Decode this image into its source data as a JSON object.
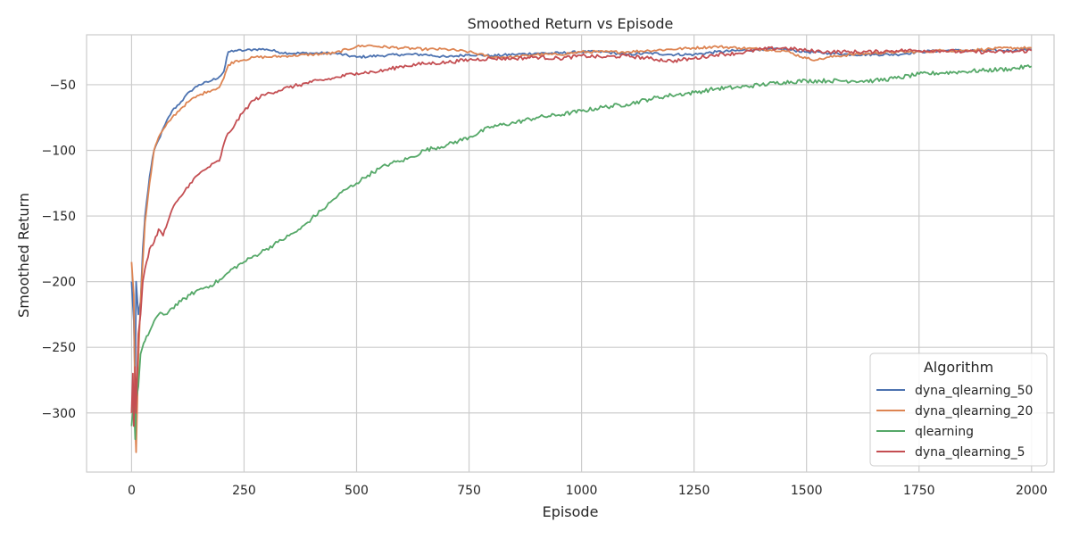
{
  "chart_data": {
    "type": "line",
    "title": "Smoothed Return vs Episode",
    "xlabel": "Episode",
    "ylabel": "Smoothed Return",
    "xlim": [
      -100,
      2050
    ],
    "ylim": [
      -345,
      -12
    ],
    "xticks": [
      0,
      250,
      500,
      750,
      1000,
      1250,
      1500,
      1750,
      2000
    ],
    "xtick_labels": [
      "0",
      "250",
      "500",
      "750",
      "1000",
      "1250",
      "1500",
      "1750",
      "2000"
    ],
    "yticks": [
      -50,
      -100,
      -150,
      -200,
      -250,
      -300
    ],
    "ytick_labels": [
      "−50",
      "−100",
      "−150",
      "−200",
      "−250",
      "−300"
    ],
    "grid": true,
    "legend": {
      "title": "Algorithm",
      "position": "lower-right"
    },
    "series": [
      {
        "name": "dyna_qlearning_50",
        "color": "#4c72b0",
        "noise": 1.0,
        "points": [
          [
            0,
            -200
          ],
          [
            5,
            -230
          ],
          [
            8,
            -280
          ],
          [
            10,
            -200
          ],
          [
            15,
            -225
          ],
          [
            20,
            -215
          ],
          [
            25,
            -175
          ],
          [
            30,
            -150
          ],
          [
            40,
            -120
          ],
          [
            50,
            -100
          ],
          [
            60,
            -92
          ],
          [
            75,
            -80
          ],
          [
            90,
            -70
          ],
          [
            110,
            -63
          ],
          [
            130,
            -55
          ],
          [
            150,
            -50
          ],
          [
            170,
            -48
          ],
          [
            195,
            -44
          ],
          [
            205,
            -40
          ],
          [
            215,
            -25
          ],
          [
            230,
            -24
          ],
          [
            250,
            -24
          ],
          [
            275,
            -23
          ],
          [
            300,
            -23
          ],
          [
            325,
            -25
          ],
          [
            350,
            -26
          ],
          [
            400,
            -26
          ],
          [
            450,
            -26
          ],
          [
            500,
            -29
          ],
          [
            550,
            -28
          ],
          [
            600,
            -27
          ],
          [
            650,
            -27
          ],
          [
            700,
            -29
          ],
          [
            750,
            -27
          ],
          [
            800,
            -28
          ],
          [
            850,
            -27
          ],
          [
            900,
            -26
          ],
          [
            950,
            -26
          ],
          [
            1000,
            -25
          ],
          [
            1050,
            -25
          ],
          [
            1100,
            -27
          ],
          [
            1150,
            -26
          ],
          [
            1200,
            -27
          ],
          [
            1250,
            -27
          ],
          [
            1300,
            -25
          ],
          [
            1350,
            -24
          ],
          [
            1400,
            -23
          ],
          [
            1450,
            -23
          ],
          [
            1500,
            -25
          ],
          [
            1550,
            -26
          ],
          [
            1600,
            -27
          ],
          [
            1650,
            -27
          ],
          [
            1700,
            -27
          ],
          [
            1750,
            -25
          ],
          [
            1800,
            -24
          ],
          [
            1850,
            -24
          ],
          [
            1900,
            -24
          ],
          [
            1950,
            -24
          ],
          [
            2000,
            -23
          ]
        ]
      },
      {
        "name": "dyna_qlearning_20",
        "color": "#dd8452",
        "noise": 1.0,
        "points": [
          [
            0,
            -185
          ],
          [
            5,
            -210
          ],
          [
            8,
            -310
          ],
          [
            10,
            -330
          ],
          [
            15,
            -260
          ],
          [
            20,
            -215
          ],
          [
            25,
            -185
          ],
          [
            30,
            -155
          ],
          [
            40,
            -125
          ],
          [
            50,
            -100
          ],
          [
            60,
            -90
          ],
          [
            75,
            -82
          ],
          [
            90,
            -75
          ],
          [
            110,
            -68
          ],
          [
            130,
            -62
          ],
          [
            150,
            -58
          ],
          [
            170,
            -55
          ],
          [
            195,
            -52
          ],
          [
            205,
            -45
          ],
          [
            215,
            -35
          ],
          [
            230,
            -32
          ],
          [
            250,
            -31
          ],
          [
            275,
            -29
          ],
          [
            300,
            -29
          ],
          [
            350,
            -28
          ],
          [
            400,
            -27
          ],
          [
            450,
            -26
          ],
          [
            500,
            -21
          ],
          [
            525,
            -20
          ],
          [
            550,
            -21
          ],
          [
            600,
            -22
          ],
          [
            650,
            -23
          ],
          [
            700,
            -23
          ],
          [
            750,
            -25
          ],
          [
            800,
            -29
          ],
          [
            850,
            -29
          ],
          [
            900,
            -27
          ],
          [
            950,
            -27
          ],
          [
            1000,
            -25
          ],
          [
            1050,
            -25
          ],
          [
            1100,
            -25
          ],
          [
            1150,
            -24
          ],
          [
            1200,
            -23
          ],
          [
            1250,
            -22
          ],
          [
            1300,
            -21
          ],
          [
            1350,
            -22
          ],
          [
            1400,
            -23
          ],
          [
            1450,
            -24
          ],
          [
            1500,
            -30
          ],
          [
            1525,
            -31
          ],
          [
            1550,
            -29
          ],
          [
            1600,
            -27
          ],
          [
            1650,
            -26
          ],
          [
            1700,
            -25
          ],
          [
            1750,
            -25
          ],
          [
            1800,
            -24
          ],
          [
            1850,
            -24
          ],
          [
            1900,
            -23
          ],
          [
            1950,
            -22
          ],
          [
            2000,
            -22
          ]
        ]
      },
      {
        "name": "qlearning",
        "color": "#55a868",
        "noise": 1.6,
        "points": [
          [
            0,
            -310
          ],
          [
            5,
            -290
          ],
          [
            8,
            -320
          ],
          [
            10,
            -290
          ],
          [
            15,
            -280
          ],
          [
            20,
            -255
          ],
          [
            30,
            -245
          ],
          [
            40,
            -238
          ],
          [
            50,
            -230
          ],
          [
            60,
            -225
          ],
          [
            75,
            -225
          ],
          [
            90,
            -220
          ],
          [
            110,
            -215
          ],
          [
            130,
            -210
          ],
          [
            150,
            -206
          ],
          [
            175,
            -203
          ],
          [
            200,
            -198
          ],
          [
            225,
            -190
          ],
          [
            250,
            -185
          ],
          [
            275,
            -180
          ],
          [
            300,
            -175
          ],
          [
            325,
            -170
          ],
          [
            350,
            -165
          ],
          [
            375,
            -160
          ],
          [
            400,
            -152
          ],
          [
            425,
            -145
          ],
          [
            450,
            -137
          ],
          [
            475,
            -130
          ],
          [
            500,
            -125
          ],
          [
            525,
            -119
          ],
          [
            550,
            -114
          ],
          [
            575,
            -110
          ],
          [
            600,
            -108
          ],
          [
            625,
            -105
          ],
          [
            650,
            -100
          ],
          [
            700,
            -96
          ],
          [
            750,
            -90
          ],
          [
            800,
            -82
          ],
          [
            850,
            -79
          ],
          [
            900,
            -75
          ],
          [
            950,
            -73
          ],
          [
            1000,
            -70
          ],
          [
            1050,
            -67
          ],
          [
            1100,
            -65
          ],
          [
            1150,
            -61
          ],
          [
            1200,
            -58
          ],
          [
            1250,
            -56
          ],
          [
            1300,
            -53
          ],
          [
            1350,
            -52
          ],
          [
            1400,
            -50
          ],
          [
            1450,
            -48
          ],
          [
            1500,
            -47
          ],
          [
            1550,
            -47
          ],
          [
            1600,
            -47
          ],
          [
            1650,
            -47
          ],
          [
            1700,
            -45
          ],
          [
            1750,
            -42
          ],
          [
            1800,
            -41
          ],
          [
            1850,
            -40
          ],
          [
            1900,
            -39
          ],
          [
            1950,
            -38
          ],
          [
            2000,
            -36
          ]
        ]
      },
      {
        "name": "dyna_qlearning_5",
        "color": "#c44e52",
        "noise": 1.4,
        "points": [
          [
            0,
            -300
          ],
          [
            3,
            -270
          ],
          [
            5,
            -310
          ],
          [
            8,
            -265
          ],
          [
            10,
            -300
          ],
          [
            15,
            -240
          ],
          [
            20,
            -225
          ],
          [
            25,
            -200
          ],
          [
            30,
            -190
          ],
          [
            40,
            -175
          ],
          [
            50,
            -170
          ],
          [
            60,
            -160
          ],
          [
            70,
            -165
          ],
          [
            80,
            -155
          ],
          [
            90,
            -145
          ],
          [
            110,
            -135
          ],
          [
            130,
            -125
          ],
          [
            150,
            -118
          ],
          [
            170,
            -113
          ],
          [
            195,
            -108
          ],
          [
            210,
            -90
          ],
          [
            230,
            -80
          ],
          [
            250,
            -70
          ],
          [
            270,
            -62
          ],
          [
            300,
            -57
          ],
          [
            350,
            -52
          ],
          [
            400,
            -48
          ],
          [
            450,
            -45
          ],
          [
            500,
            -41
          ],
          [
            550,
            -40
          ],
          [
            600,
            -36
          ],
          [
            650,
            -34
          ],
          [
            700,
            -33
          ],
          [
            750,
            -31
          ],
          [
            800,
            -30
          ],
          [
            850,
            -30
          ],
          [
            900,
            -29
          ],
          [
            950,
            -30
          ],
          [
            1000,
            -28
          ],
          [
            1050,
            -29
          ],
          [
            1100,
            -28
          ],
          [
            1150,
            -30
          ],
          [
            1200,
            -32
          ],
          [
            1250,
            -30
          ],
          [
            1300,
            -27
          ],
          [
            1350,
            -26
          ],
          [
            1400,
            -23
          ],
          [
            1450,
            -22
          ],
          [
            1500,
            -24
          ],
          [
            1550,
            -25
          ],
          [
            1600,
            -25
          ],
          [
            1650,
            -25
          ],
          [
            1700,
            -24
          ],
          [
            1750,
            -24
          ],
          [
            1800,
            -24
          ],
          [
            1850,
            -25
          ],
          [
            1900,
            -25
          ],
          [
            1950,
            -25
          ],
          [
            2000,
            -24
          ]
        ]
      }
    ]
  }
}
